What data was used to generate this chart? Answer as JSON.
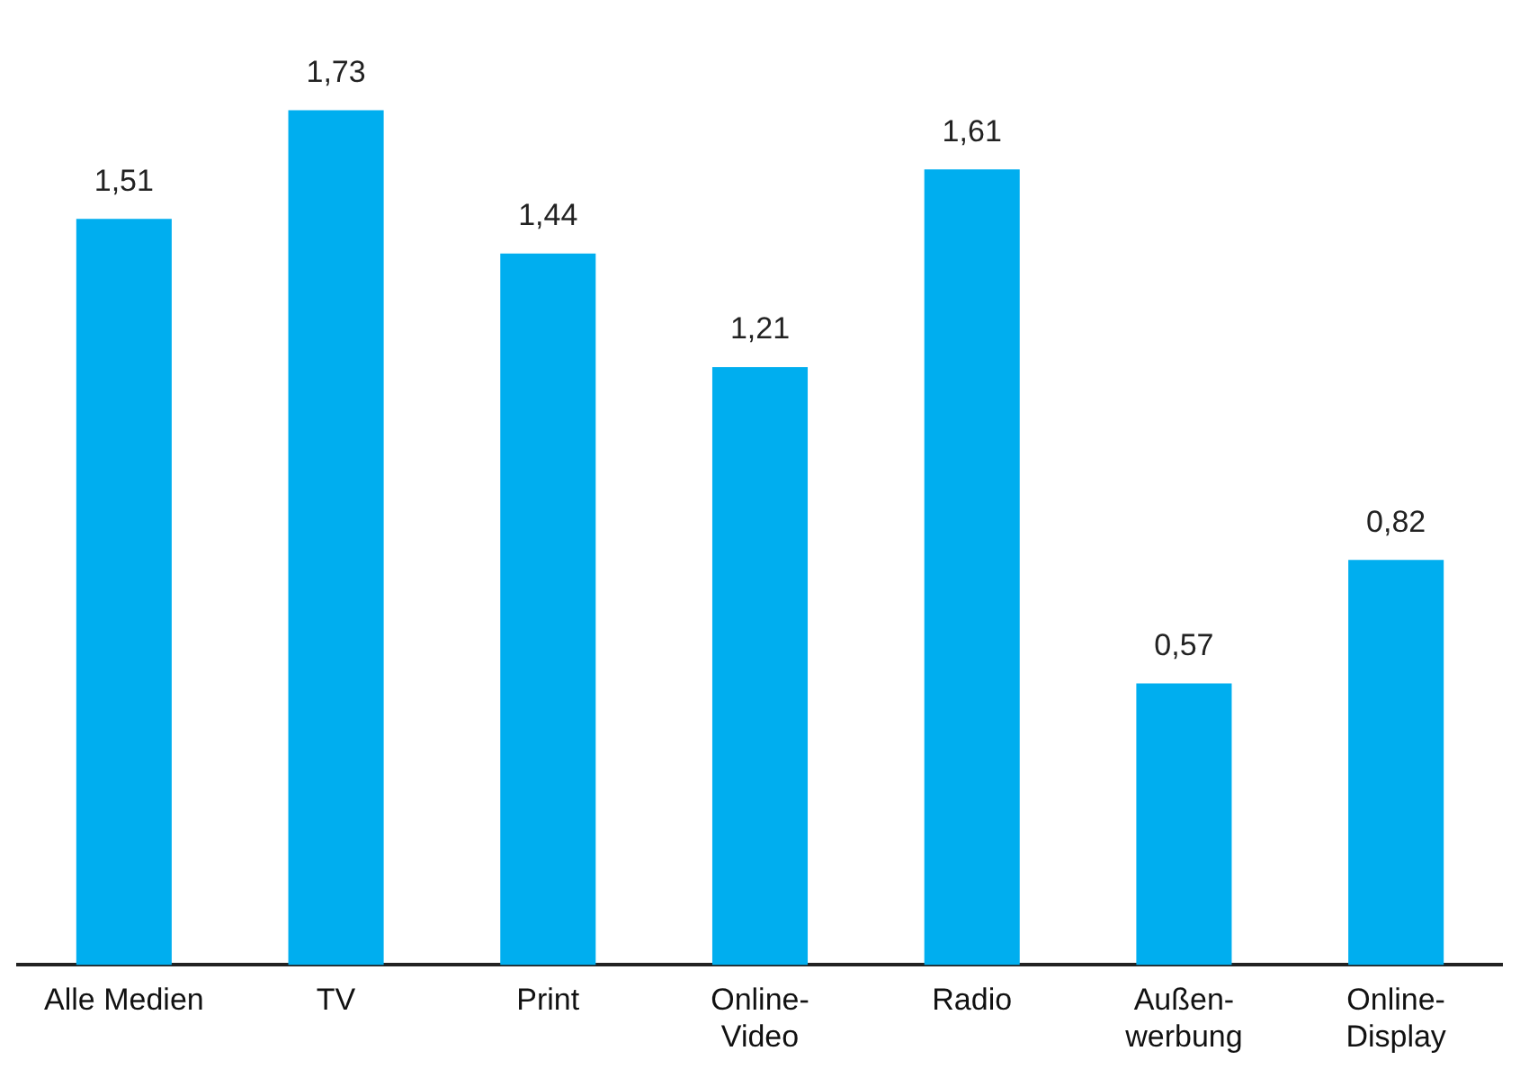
{
  "chart_data": {
    "type": "bar",
    "categories": [
      "Alle Medien",
      "TV",
      "Print",
      "Online-\nVideo",
      "Radio",
      "Außen-\nwerbung",
      "Online-\nDisplay"
    ],
    "values": [
      1.51,
      1.73,
      1.44,
      1.21,
      1.61,
      0.57,
      0.82
    ],
    "value_labels": [
      "1,51",
      "1,73",
      "1,44",
      "1,21",
      "1,61",
      "0,57",
      "0,82"
    ],
    "color": "#00aeef",
    "grid": false,
    "legend": false,
    "tick_labels": "x"
  }
}
